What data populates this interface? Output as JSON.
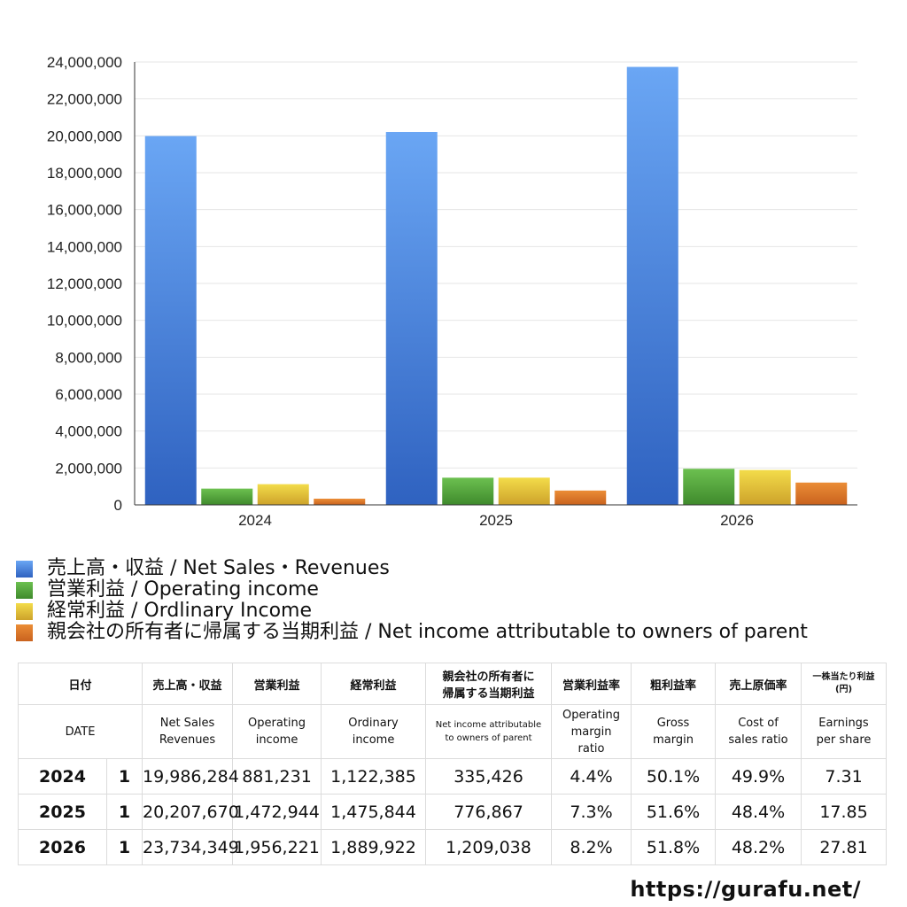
{
  "chart_data": {
    "type": "bar",
    "categories": [
      "2024",
      "2025",
      "2026"
    ],
    "series": [
      {
        "name": "売上高・収益 / Net Sales・Revenues",
        "color": "#4a86dc",
        "values": [
          19986284,
          20207670,
          23734349
        ]
      },
      {
        "name": "営業利益 / Operating income",
        "color": "#5aa842",
        "values": [
          881231,
          1472944,
          1956221
        ]
      },
      {
        "name": "経常利益 / Ordlinary Income",
        "color": "#e2c63a",
        "values": [
          1122385,
          1475844,
          1889922
        ]
      },
      {
        "name": "親会社の所有者に帰属する当期利益 / Net income attributable to owners of parent",
        "color": "#e0782c",
        "values": [
          335426,
          776867,
          1209038
        ]
      }
    ],
    "ylim": [
      0,
      24000000
    ],
    "yticks": [
      "0",
      "2,000,000",
      "4,000,000",
      "6,000,000",
      "8,000,000",
      "10,000,000",
      "12,000,000",
      "14,000,000",
      "16,000,000",
      "18,000,000",
      "20,000,000",
      "22,000,000",
      "24,000,000"
    ],
    "grid": true,
    "legend_position": "bottom"
  },
  "table": {
    "header_jp": [
      "日付",
      "売上高・収益",
      "営業利益",
      "経常利益",
      "親会社の所有者に\n帰属する当期利益",
      "営業利益率",
      "粗利益率",
      "売上原価率",
      "一株当たり利益\n(円)"
    ],
    "header_en": [
      "DATE",
      "Net Sales\nRevenues",
      "Operating\nincome",
      "Ordinary\nincome",
      "Net income attributable\nto owners of parent",
      "Operating\nmargin\nratio",
      "Gross\nmargin",
      "Cost of\nsales ratio",
      "Earnings\nper share"
    ],
    "rows": [
      {
        "year": "2024",
        "period": "1",
        "values": [
          "19,986,284",
          "881,231",
          "1,122,385",
          "335,426",
          "4.4%",
          "50.1%",
          "49.9%",
          "7.31"
        ]
      },
      {
        "year": "2025",
        "period": "1",
        "values": [
          "20,207,670",
          "1,472,944",
          "1,475,844",
          "776,867",
          "7.3%",
          "51.6%",
          "48.4%",
          "17.85"
        ]
      },
      {
        "year": "2026",
        "period": "1",
        "values": [
          "23,734,349",
          "1,956,221",
          "1,889,922",
          "1,209,038",
          "8.2%",
          "51.8%",
          "48.2%",
          "27.81"
        ]
      }
    ]
  },
  "footer": "https://gurafu.net/"
}
